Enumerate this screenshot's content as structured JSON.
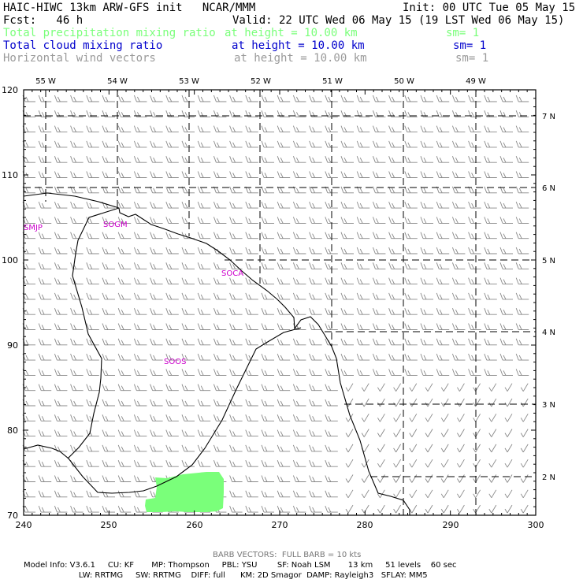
{
  "header": {
    "line1_left": "HAIC-HIWC 13km ARW-GFS init   NCAR/MMM",
    "line1_right": "Init: 00 UTC Tue 05 May 15",
    "line2_left": "Fcst:   46 h",
    "line2_right": "Valid: 22 UTC Wed 06 May 15 (19 LST Wed 06 May 15)",
    "fields": [
      {
        "name": "Total precipitation mixing ratio",
        "level": "at height = 10.00 km",
        "sm": "sm= 1",
        "color": "#7aff7a"
      },
      {
        "name": "Total cloud mixing ratio",
        "level": "at height = 10.00 km",
        "sm": "sm= 1",
        "color": "#0000cc"
      },
      {
        "name": "Horizontal wind vectors",
        "level": "at height = 10.00 km",
        "sm": "sm= 1",
        "color": "#9a9a9a"
      }
    ]
  },
  "map": {
    "x_ticks": [
      "240",
      "250",
      "260",
      "270",
      "280",
      "290",
      "300"
    ],
    "y_ticks": [
      "70",
      "80",
      "90",
      "100",
      "110",
      "120"
    ],
    "lon_labels": [
      "55 W",
      "54 W",
      "53 W",
      "52 W",
      "51 W",
      "50 W",
      "49 W"
    ],
    "lat_labels": [
      "7 N",
      "6 N",
      "5 N",
      "4 N",
      "3 N",
      "2 N"
    ],
    "stations": [
      "SMJP",
      "SOGM",
      "SOCA",
      "SOOS"
    ],
    "station_color": "#cc00cc",
    "precip_color": "#7aff7a"
  },
  "footer": {
    "barb_note": "BARB VECTORS:  FULL BARB = 10 kts",
    "model_line1": "Model Info: V3.6.1     CU: KF       MP: Thompson     PBL: YSU        SF: Noah LSM       13 km     51 levels    60 sec",
    "model_line2": "                      LW: RRTMG     SW: RRTMG    DIFF: full      KM: 2D Smagor  DAMP: Rayleigh3   SFLAY: MM5"
  }
}
